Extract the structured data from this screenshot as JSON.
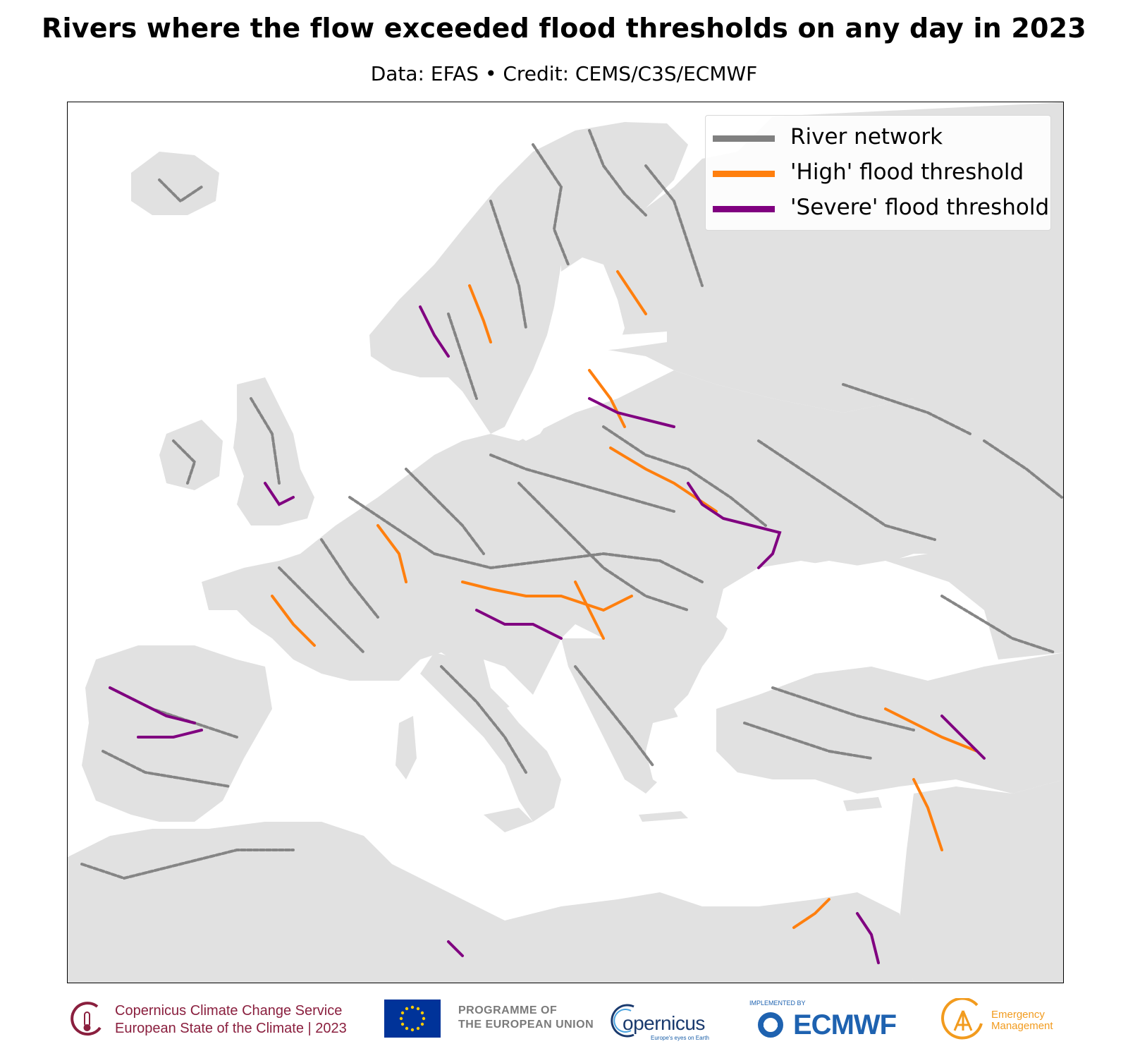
{
  "title": "Rivers where the flow exceeded flood thresholds on any day in 2023",
  "subtitle": "Data: EFAS • Credit: CEMS/C3S/ECMWF",
  "legend": {
    "items": [
      {
        "label": "River network",
        "color": "#808080"
      },
      {
        "label": "'High' flood threshold",
        "color": "#ff7f0e"
      },
      {
        "label": "'Severe' flood threshold",
        "color": "#800080"
      }
    ]
  },
  "colors": {
    "land": "#e1e1e1",
    "sea": "#ffffff",
    "river": "#808080",
    "high": "#ff7f0e",
    "severe": "#800080"
  },
  "footer": {
    "c3s_line1": "Copernicus Climate Change Service",
    "c3s_line2": "European State of the Climate | 2023",
    "eu_line1": "PROGRAMME OF",
    "eu_line2": "THE EUROPEAN UNION",
    "copernicus_word": "opernicus",
    "copernicus_tag": "Europe's eyes on Earth",
    "ecmwf_small": "IMPLEMENTED BY",
    "ecmwf_word": "ECMWF",
    "em_line1": "Emergency",
    "em_line2": "Management"
  }
}
